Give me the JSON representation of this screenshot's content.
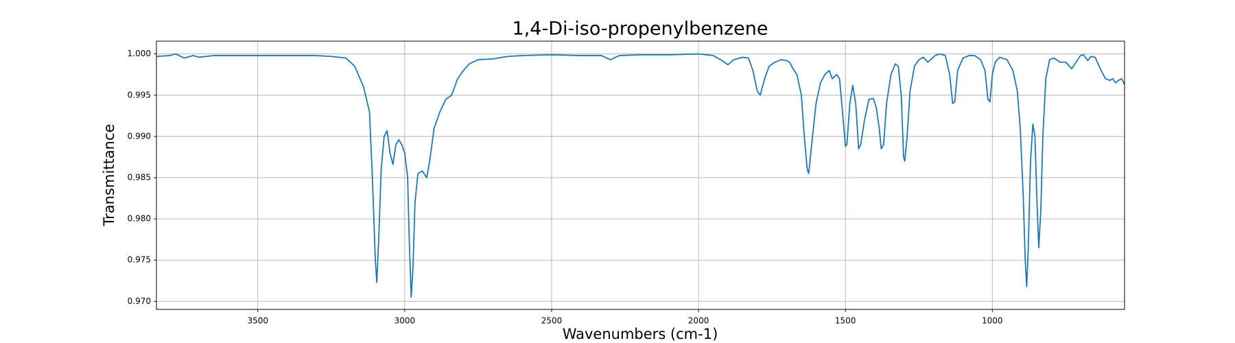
{
  "chart_data": {
    "type": "line",
    "title": "1,4-Di-iso-propenylbenzene",
    "xlabel": "Wavenumbers (cm-1)",
    "ylabel": "Transmittance",
    "color": "#1f77b4",
    "grid": true,
    "xlim": [
      3845,
      550
    ],
    "ylim": [
      0.96903,
      1.00155
    ],
    "xticks": [
      3500,
      3000,
      2500,
      2000,
      1500,
      1000
    ],
    "yticks": [
      {
        "value": 0.97,
        "label": "0.970"
      },
      {
        "value": 0.975,
        "label": "0.975"
      },
      {
        "value": 0.98,
        "label": "0.980"
      },
      {
        "value": 0.985,
        "label": "0.985"
      },
      {
        "value": 0.99,
        "label": "0.990"
      },
      {
        "value": 0.995,
        "label": "0.995"
      },
      {
        "value": 1.0,
        "label": "1.000"
      }
    ],
    "x": [
      3845,
      3800,
      3780,
      3750,
      3720,
      3700,
      3650,
      3600,
      3500,
      3400,
      3300,
      3250,
      3200,
      3170,
      3140,
      3120,
      3110,
      3100,
      3095,
      3088,
      3080,
      3070,
      3060,
      3050,
      3040,
      3030,
      3020,
      3010,
      3000,
      2990,
      2985,
      2978,
      2972,
      2965,
      2955,
      2940,
      2925,
      2915,
      2900,
      2880,
      2860,
      2840,
      2820,
      2800,
      2780,
      2750,
      2700,
      2650,
      2600,
      2500,
      2400,
      2330,
      2300,
      2270,
      2200,
      2100,
      2000,
      1950,
      1920,
      1900,
      1880,
      1850,
      1830,
      1815,
      1800,
      1790,
      1775,
      1760,
      1740,
      1720,
      1700,
      1690,
      1680,
      1665,
      1650,
      1640,
      1630,
      1625,
      1615,
      1600,
      1585,
      1570,
      1555,
      1545,
      1530,
      1520,
      1510,
      1500,
      1495,
      1485,
      1475,
      1465,
      1455,
      1448,
      1435,
      1420,
      1405,
      1395,
      1385,
      1378,
      1370,
      1360,
      1345,
      1330,
      1320,
      1310,
      1302,
      1298,
      1290,
      1280,
      1265,
      1250,
      1235,
      1220,
      1210,
      1195,
      1180,
      1160,
      1145,
      1135,
      1128,
      1118,
      1100,
      1080,
      1060,
      1040,
      1025,
      1015,
      1008,
      1000,
      990,
      975,
      950,
      930,
      915,
      905,
      895,
      888,
      883,
      878,
      870,
      862,
      855,
      848,
      842,
      835,
      828,
      818,
      805,
      790,
      770,
      750,
      730,
      715,
      700,
      690,
      675,
      665,
      650,
      630,
      615,
      600,
      590,
      580,
      570,
      560,
      550
    ],
    "values": [
      0.9997,
      0.9998,
      1.0,
      0.9995,
      0.9998,
      0.9996,
      0.9998,
      0.9998,
      0.9998,
      0.9998,
      0.9998,
      0.9997,
      0.9995,
      0.9985,
      0.996,
      0.993,
      0.985,
      0.975,
      0.9723,
      0.978,
      0.986,
      0.99,
      0.9907,
      0.988,
      0.9866,
      0.989,
      0.9896,
      0.989,
      0.988,
      0.985,
      0.978,
      0.9705,
      0.974,
      0.982,
      0.9855,
      0.9858,
      0.985,
      0.987,
      0.991,
      0.993,
      0.9945,
      0.995,
      0.997,
      0.998,
      0.9988,
      0.9993,
      0.9994,
      0.9997,
      0.9998,
      0.9999,
      0.9998,
      0.9998,
      0.9993,
      0.9998,
      0.9999,
      0.9999,
      1.0,
      0.9998,
      0.9992,
      0.9987,
      0.9993,
      0.9996,
      0.9995,
      0.998,
      0.9955,
      0.995,
      0.997,
      0.9985,
      0.999,
      0.9993,
      0.9992,
      0.999,
      0.9983,
      0.9975,
      0.995,
      0.99,
      0.986,
      0.9855,
      0.989,
      0.994,
      0.9965,
      0.9975,
      0.998,
      0.997,
      0.9975,
      0.997,
      0.993,
      0.9888,
      0.989,
      0.994,
      0.9962,
      0.994,
      0.9885,
      0.989,
      0.992,
      0.9945,
      0.9946,
      0.9935,
      0.991,
      0.9885,
      0.989,
      0.994,
      0.9975,
      0.9988,
      0.9985,
      0.995,
      0.9875,
      0.987,
      0.99,
      0.9955,
      0.9985,
      0.9993,
      0.9996,
      0.999,
      0.9993,
      0.9998,
      1.0,
      0.9998,
      0.9975,
      0.994,
      0.9942,
      0.998,
      0.9995,
      0.9998,
      0.9998,
      0.9993,
      0.998,
      0.9945,
      0.9942,
      0.9975,
      0.999,
      0.9996,
      0.9993,
      0.998,
      0.9955,
      0.991,
      0.983,
      0.975,
      0.9718,
      0.976,
      0.987,
      0.9915,
      0.99,
      0.982,
      0.9765,
      0.981,
      0.99,
      0.997,
      0.9993,
      0.9995,
      0.999,
      0.999,
      0.9982,
      0.999,
      0.9998,
      0.9999,
      0.9992,
      0.9997,
      0.9996,
      0.998,
      0.997,
      0.9968,
      0.997,
      0.9965,
      0.9968,
      0.997,
      0.9963
    ]
  }
}
